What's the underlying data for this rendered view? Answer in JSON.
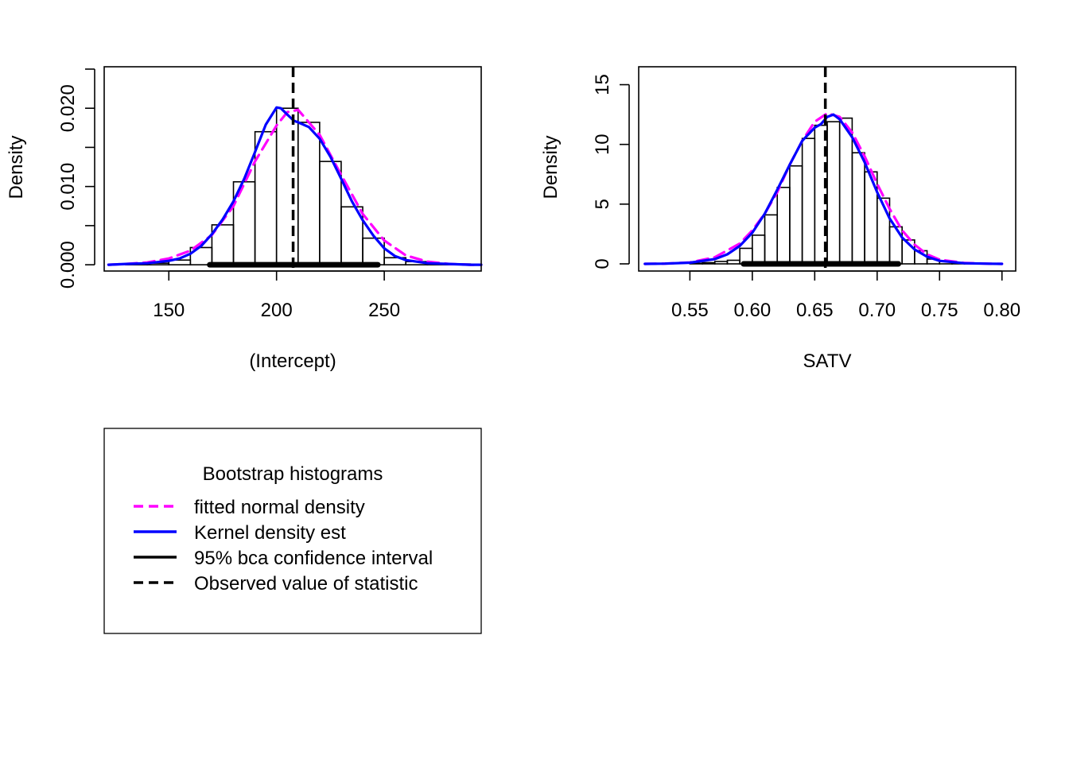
{
  "chart_data": [
    {
      "type": "histogram",
      "xlabel": "(Intercept)",
      "ylabel": "Density",
      "xlim": [
        120,
        295
      ],
      "ylim": [
        -0.0008,
        0.0253
      ],
      "x_ticks": [
        150,
        200,
        250
      ],
      "x_tick_labels": [
        "150",
        "200",
        "250"
      ],
      "y_ticks": [
        0,
        0.005,
        0.01,
        0.015,
        0.02,
        0.025
      ],
      "y_tick_labels": [
        "0.000",
        "",
        "0.010",
        "",
        "0.020",
        ""
      ],
      "bins": {
        "edges": [
          130,
          140,
          150,
          160,
          170,
          180,
          190,
          200,
          210,
          220,
          230,
          240,
          250,
          260,
          270,
          280,
          290
        ],
        "densities": [
          0.0001,
          0.0002,
          0.0006,
          0.0022,
          0.0051,
          0.0106,
          0.017,
          0.02,
          0.0182,
          0.0132,
          0.0074,
          0.0034,
          0.0009,
          0.0004,
          0.0001,
          0.0001
        ]
      },
      "observed_value": 207.7,
      "ci_95_bca": [
        169,
        247
      ],
      "series": [
        {
          "name": "fitted normal density",
          "x": [
            122,
            130,
            140,
            150,
            160,
            170,
            180,
            190,
            200,
            205,
            210,
            220,
            230,
            240,
            250,
            260,
            270,
            280,
            290,
            295
          ],
          "y": [
            0.0,
            0.0001,
            0.0003,
            0.0008,
            0.0018,
            0.0038,
            0.0075,
            0.0132,
            0.0178,
            0.0195,
            0.0198,
            0.0166,
            0.0115,
            0.0065,
            0.0031,
            0.0012,
            0.0004,
            0.0001,
            0.0,
            0.0
          ]
        },
        {
          "name": "Kernel density est",
          "x": [
            122,
            130,
            140,
            150,
            155,
            160,
            165,
            170,
            175,
            180,
            185,
            190,
            195,
            200,
            202,
            205,
            208,
            210,
            215,
            220,
            225,
            230,
            235,
            240,
            245,
            250,
            255,
            260,
            270,
            280,
            290,
            295
          ],
          "y": [
            0.0,
            0.0001,
            0.0002,
            0.0005,
            0.0008,
            0.0014,
            0.0024,
            0.0039,
            0.0058,
            0.0081,
            0.011,
            0.0144,
            0.0179,
            0.0201,
            0.02,
            0.0192,
            0.0184,
            0.0182,
            0.0176,
            0.0161,
            0.0138,
            0.011,
            0.0081,
            0.0057,
            0.0037,
            0.0021,
            0.0011,
            0.0006,
            0.0002,
            0.0001,
            0.0,
            0.0
          ]
        }
      ]
    },
    {
      "type": "histogram",
      "xlabel": "SATV",
      "ylabel": "Density",
      "xlim": [
        0.509,
        0.811
      ],
      "ylim": [
        -0.6,
        16.5
      ],
      "x_ticks": [
        0.55,
        0.6,
        0.65,
        0.7,
        0.75,
        0.8
      ],
      "x_tick_labels": [
        "0.55",
        "0.60",
        "0.65",
        "0.70",
        "0.75",
        "0.80"
      ],
      "y_ticks": [
        0,
        5,
        10,
        15
      ],
      "y_tick_labels": [
        "0",
        "5",
        "10",
        "15"
      ],
      "bins": {
        "edges": [
          0.52,
          0.53,
          0.54,
          0.55,
          0.56,
          0.57,
          0.58,
          0.59,
          0.6,
          0.61,
          0.62,
          0.63,
          0.64,
          0.65,
          0.66,
          0.67,
          0.68,
          0.69,
          0.7,
          0.71,
          0.72,
          0.73,
          0.74,
          0.75,
          0.76,
          0.77,
          0.78,
          0.79,
          0.8
        ],
        "densities": [
          0,
          0,
          0,
          0.05,
          0.1,
          0.2,
          0.3,
          1.3,
          2.4,
          4.1,
          6.4,
          8.2,
          10.5,
          11.6,
          11.9,
          12.2,
          9.3,
          7.7,
          5.5,
          3.1,
          2.0,
          1.1,
          0.4,
          0.2,
          0.1,
          0.05,
          0,
          0
        ]
      },
      "observed_value": 0.6585,
      "ci_95_bca": [
        0.593,
        0.717
      ],
      "series": [
        {
          "name": "fitted normal density",
          "x": [
            0.514,
            0.53,
            0.55,
            0.57,
            0.59,
            0.6,
            0.61,
            0.62,
            0.63,
            0.64,
            0.65,
            0.66,
            0.67,
            0.68,
            0.69,
            0.7,
            0.71,
            0.72,
            0.73,
            0.74,
            0.75,
            0.77,
            0.79,
            0.8
          ],
          "y": [
            0.0,
            0.02,
            0.12,
            0.55,
            1.7,
            2.8,
            4.2,
            6.0,
            8.3,
            10.3,
            11.9,
            12.6,
            12.3,
            11.0,
            9.0,
            6.7,
            4.6,
            2.8,
            1.6,
            0.8,
            0.35,
            0.07,
            0.01,
            0.0
          ]
        },
        {
          "name": "Kernel density est",
          "x": [
            0.514,
            0.53,
            0.55,
            0.57,
            0.58,
            0.59,
            0.6,
            0.61,
            0.62,
            0.63,
            0.64,
            0.65,
            0.655,
            0.66,
            0.665,
            0.67,
            0.68,
            0.69,
            0.7,
            0.71,
            0.72,
            0.73,
            0.74,
            0.75,
            0.77,
            0.79,
            0.8
          ],
          "y": [
            0.0,
            0.02,
            0.1,
            0.4,
            0.8,
            1.5,
            2.6,
            4.2,
            6.2,
            8.3,
            10.3,
            11.4,
            11.7,
            12.3,
            12.5,
            12.1,
            10.6,
            8.5,
            6.0,
            3.8,
            2.2,
            1.2,
            0.6,
            0.25,
            0.05,
            0.01,
            0.0
          ]
        }
      ]
    }
  ],
  "legend": {
    "title": "Bootstrap histograms",
    "items": [
      {
        "label": "fitted normal density",
        "color": "#ff00ff",
        "dash": true
      },
      {
        "label": "Kernel density est",
        "color": "#0000ff",
        "dash": false
      },
      {
        "label": "95% bca confidence interval",
        "color": "#000000",
        "dash": false
      },
      {
        "label": "Observed value of statistic",
        "color": "#000000",
        "dash": true
      }
    ]
  },
  "colors": {
    "normal": "#ff00ff",
    "kernel": "#0000ff",
    "ci": "#000000",
    "observed": "#000000"
  }
}
